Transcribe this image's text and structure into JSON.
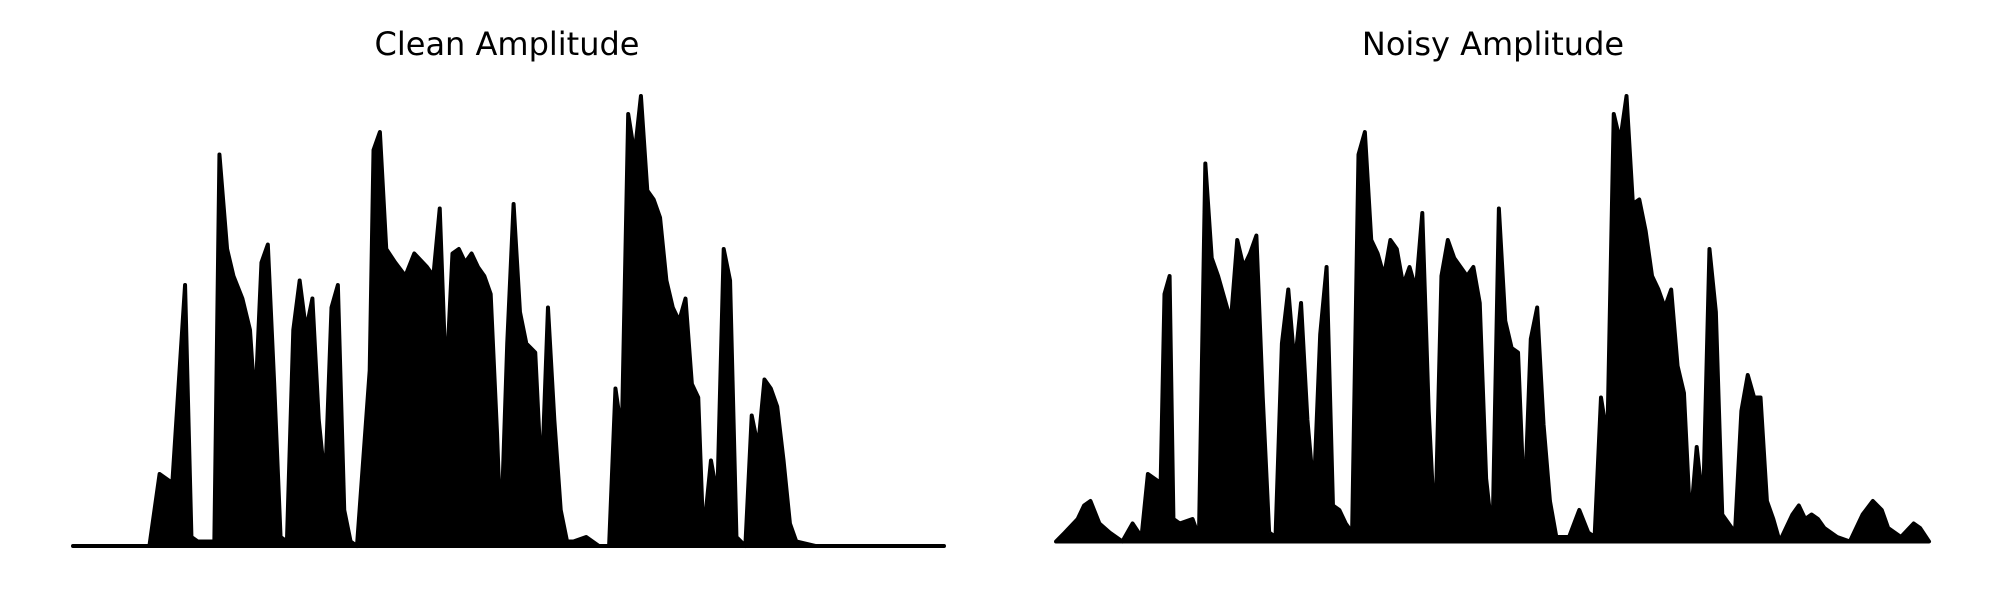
{
  "chart_data": [
    {
      "type": "area",
      "title": "Clean Amplitude",
      "color": "#000000",
      "xlim": [
        0,
        684
      ],
      "ylim": [
        0,
        1
      ],
      "x": [
        0,
        60,
        68,
        73,
        78,
        83,
        88,
        93,
        98,
        111,
        115,
        121,
        126,
        133,
        139,
        143,
        148,
        153,
        158,
        163,
        168,
        173,
        178,
        183,
        188,
        193,
        198,
        203,
        208,
        213,
        218,
        223,
        233,
        236,
        241,
        246,
        253,
        261,
        268,
        278,
        283,
        288,
        293,
        298,
        303,
        308,
        313,
        318,
        323,
        328,
        333,
        336,
        341,
        346,
        351,
        356,
        363,
        368,
        373,
        378,
        383,
        388,
        393,
        403,
        413,
        421,
        426,
        431,
        436,
        441,
        446,
        451,
        456,
        461,
        466,
        471,
        476,
        481,
        486,
        491,
        495,
        501,
        506,
        511,
        516,
        521,
        528,
        533,
        538,
        543,
        548,
        553,
        558,
        563,
        568,
        583,
        684
      ],
      "values": [
        0,
        0,
        0.16,
        0.15,
        0.14,
        0.36,
        0.58,
        0.02,
        0.01,
        0.01,
        0.87,
        0.66,
        0.6,
        0.55,
        0.48,
        0.31,
        0.63,
        0.67,
        0.36,
        0.02,
        0.01,
        0.48,
        0.59,
        0.48,
        0.55,
        0.28,
        0.14,
        0.53,
        0.58,
        0.08,
        0.01,
        0,
        0.39,
        0.88,
        0.92,
        0.66,
        0.63,
        0.6,
        0.65,
        0.62,
        0.6,
        0.75,
        0.36,
        0.65,
        0.66,
        0.63,
        0.65,
        0.62,
        0.6,
        0.56,
        0.25,
        0.02,
        0.45,
        0.76,
        0.52,
        0.45,
        0.43,
        0.14,
        0.53,
        0.28,
        0.08,
        0.01,
        0.01,
        0.02,
        0,
        0,
        0.35,
        0.25,
        0.96,
        0.87,
        1,
        0.79,
        0.77,
        0.73,
        0.59,
        0.53,
        0.5,
        0.55,
        0.36,
        0.33,
        0.02,
        0.19,
        0.11,
        0.66,
        0.59,
        0.02,
        0,
        0.29,
        0.22,
        0.37,
        0.35,
        0.31,
        0.19,
        0.05,
        0.01,
        0,
        0
      ]
    },
    {
      "type": "area",
      "title": "Noisy Amplitude",
      "color": "#000000",
      "xlim": [
        0,
        684
      ],
      "ylim": [
        0,
        1
      ],
      "x": [
        0,
        7,
        17,
        22,
        27,
        34,
        42,
        52,
        60,
        67,
        72,
        77,
        82,
        85,
        89,
        92,
        97,
        107,
        112,
        117,
        122,
        127,
        132,
        137,
        142,
        147,
        152,
        157,
        162,
        167,
        172,
        177,
        182,
        187,
        192,
        197,
        202,
        207,
        212,
        217,
        222,
        227,
        232,
        237,
        242,
        247,
        252,
        257,
        262,
        267,
        272,
        277,
        282,
        287,
        292,
        297,
        302,
        307,
        312,
        317,
        322,
        327,
        332,
        337,
        342,
        347,
        352,
        357,
        362,
        367,
        372,
        377,
        382,
        387,
        392,
        402,
        410,
        417,
        422,
        427,
        432,
        437,
        442,
        447,
        452,
        457,
        462,
        467,
        472,
        477,
        482,
        487,
        492,
        497,
        502,
        507,
        512,
        517,
        522,
        527,
        532,
        537,
        542,
        547,
        552,
        557,
        562,
        567,
        572,
        577,
        582,
        587,
        592,
        597,
        602,
        612,
        622,
        632,
        640,
        647,
        652,
        662,
        672,
        677,
        684
      ],
      "values": [
        0.01,
        0.03,
        0.06,
        0.09,
        0.1,
        0.05,
        0.03,
        0.01,
        0.05,
        0.02,
        0.16,
        0.15,
        0.14,
        0.56,
        0.6,
        0.06,
        0.05,
        0.06,
        0.02,
        0.85,
        0.64,
        0.6,
        0.55,
        0.5,
        0.68,
        0.62,
        0.65,
        0.69,
        0.33,
        0.03,
        0.02,
        0.45,
        0.57,
        0.4,
        0.54,
        0.28,
        0.12,
        0.47,
        0.62,
        0.09,
        0.08,
        0.05,
        0.03,
        0.87,
        0.92,
        0.68,
        0.65,
        0.6,
        0.68,
        0.66,
        0.58,
        0.62,
        0.57,
        0.74,
        0.3,
        0.02,
        0.6,
        0.68,
        0.64,
        0.62,
        0.6,
        0.62,
        0.54,
        0.15,
        0.02,
        0.75,
        0.5,
        0.44,
        0.43,
        0.08,
        0.46,
        0.53,
        0.27,
        0.1,
        0.02,
        0.02,
        0.08,
        0.03,
        0.02,
        0.33,
        0.24,
        0.96,
        0.9,
        1,
        0.76,
        0.77,
        0.7,
        0.6,
        0.57,
        0.53,
        0.57,
        0.4,
        0.34,
        0.05,
        0.22,
        0.09,
        0.66,
        0.52,
        0.07,
        0.05,
        0.03,
        0.3,
        0.38,
        0.33,
        0.33,
        0.1,
        0.06,
        0.01,
        0.04,
        0.07,
        0.09,
        0.06,
        0.07,
        0.06,
        0.04,
        0.02,
        0.01,
        0.07,
        0.1,
        0.08,
        0.04,
        0.02,
        0.05,
        0.04,
        0.01
      ]
    }
  ]
}
